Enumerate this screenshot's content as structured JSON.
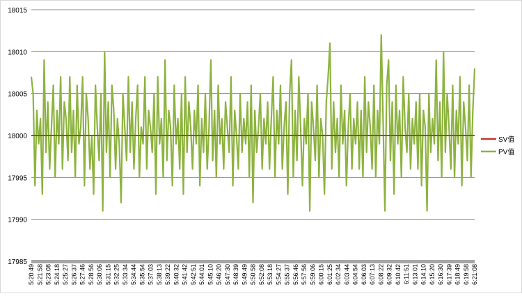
{
  "chart_data": {
    "type": "line",
    "ylim": [
      17985,
      18015
    ],
    "y_ticks": [
      17985,
      17990,
      17995,
      18000,
      18005,
      18010,
      18015
    ],
    "y_tick_labels": [
      "17985",
      "17990",
      "17995",
      "18000",
      "18005",
      "18010",
      "18015"
    ],
    "x_tick_labels": [
      "5:20:49",
      "5:21:58",
      "5:23:08",
      "5:24:18",
      "5:25:27",
      "5:26:37",
      "5:27:46",
      "5:28:56",
      "5:30:06",
      "5:31:15",
      "5:32:25",
      "5:33:34",
      "5:34:44",
      "5:35:54",
      "5:37:03",
      "5:38:13",
      "5:39:22",
      "5:40:32",
      "5:41:42",
      "5:42:51",
      "5:44:01",
      "5:45:10",
      "5:46:20",
      "5:47:30",
      "5:48:39",
      "5:49:49",
      "5:50:58",
      "5:52:08",
      "5:53:18",
      "5:54:27",
      "5:55:37",
      "5:56:46",
      "5:57:56",
      "5:59:06",
      "6:00:15",
      "6:01:25",
      "6:02:34",
      "6:03:44",
      "6:04:54",
      "6:06:03",
      "6:07:13",
      "6:08:22",
      "6:09:32",
      "6:10:42",
      "6:11:51",
      "6:13:01",
      "6:14:10",
      "6:15:20",
      "6:16:30",
      "6:17:39",
      "6:18:49",
      "6:19:58",
      "6:21:08"
    ],
    "grid": true,
    "legend_position": "right",
    "series": [
      {
        "name": "SV值",
        "color": "#c0392b",
        "values": [
          18000,
          18000,
          18000,
          18000,
          18000,
          18000,
          18000,
          18000,
          18000,
          18000,
          18000,
          18000,
          18000,
          18000,
          18000,
          18000,
          18000,
          18000,
          18000,
          18000,
          18000,
          18000,
          18000,
          18000,
          18000,
          18000,
          18000,
          18000,
          18000,
          18000,
          18000,
          18000,
          18000,
          18000,
          18000,
          18000,
          18000,
          18000,
          18000,
          18000,
          18000,
          18000,
          18000,
          18000,
          18000,
          18000,
          18000,
          18000,
          18000,
          18000,
          18000,
          18000,
          18000,
          18000,
          18000,
          18000,
          18000,
          18000,
          18000,
          18000,
          18000,
          18000,
          18000,
          18000,
          18000,
          18000,
          18000,
          18000,
          18000,
          18000,
          18000,
          18000,
          18000,
          18000,
          18000,
          18000,
          18000,
          18000,
          18000,
          18000,
          18000,
          18000,
          18000,
          18000,
          18000,
          18000,
          18000,
          18000,
          18000,
          18000,
          18000,
          18000,
          18000,
          18000,
          18000,
          18000,
          18000,
          18000,
          18000,
          18000,
          18000,
          18000,
          18000,
          18000,
          18000,
          18000,
          18000,
          18000,
          18000,
          18000,
          18000,
          18000,
          18000,
          18000,
          18000,
          18000,
          18000,
          18000,
          18000,
          18000,
          18000,
          18000,
          18000,
          18000,
          18000,
          18000,
          18000,
          18000,
          18000,
          18000,
          18000,
          18000,
          18000,
          18000,
          18000,
          18000,
          18000,
          18000,
          18000,
          18000,
          18000,
          18000,
          18000,
          18000,
          18000,
          18000,
          18000,
          18000,
          18000,
          18000,
          18000,
          18000,
          18000,
          18000,
          18000,
          18000,
          18000,
          18000,
          18000,
          18000,
          18000,
          18000,
          18000,
          18000,
          18000,
          18000,
          18000,
          18000,
          18000,
          18000,
          18000,
          18000,
          18000,
          18000,
          18000,
          18000,
          18000,
          18000,
          18000,
          18000,
          18000,
          18000,
          18000,
          18000,
          18000,
          18000,
          18000,
          18000,
          18000,
          18000,
          18000,
          18000,
          18000,
          18000,
          18000,
          18000,
          18000,
          18000,
          18000,
          18000,
          18000,
          18000,
          18000,
          18000,
          18000,
          18000,
          18000,
          18000,
          18000,
          18000,
          18000,
          18000,
          18000,
          18000,
          18000,
          18000,
          18000,
          18000,
          18000,
          18000,
          18000,
          18000,
          18000,
          18000,
          18000,
          18000,
          18000,
          18000,
          18000,
          18000,
          18000,
          18000,
          18000,
          18000,
          18000,
          18000,
          18000,
          18000,
          18000,
          18000
        ]
      },
      {
        "name": "PV值",
        "color": "#8db33f",
        "values": [
          18007,
          18005,
          17994,
          18003,
          17999,
          18002,
          17993,
          18009,
          17998,
          18004,
          17996,
          18001,
          18006,
          17995,
          18003,
          17999,
          18007,
          17996,
          18004,
          18002,
          17997,
          18007,
          17998,
          18003,
          17995,
          18006,
          17999,
          18001,
          18007,
          17994,
          18005,
          18002,
          17996,
          18000,
          17993,
          18006,
          18001,
          17997,
          18005,
          17991,
          18010,
          17998,
          18004,
          17995,
          18006,
          18003,
          17996,
          18002,
          17999,
          17992,
          18005,
          18001,
          17997,
          18007,
          17998,
          18004,
          17996,
          18002,
          18006,
          17995,
          18001,
          17999,
          18007,
          17996,
          18003,
          18001,
          17998,
          18005,
          17993,
          18007,
          17999,
          18002,
          17995,
          18009,
          17997,
          18003,
          18001,
          17994,
          18006,
          17999,
          18002,
          17996,
          18005,
          17993,
          18007,
          17998,
          18004,
          18001,
          17996,
          18003,
          17999,
          18006,
          17994,
          18002,
          17998,
          18005,
          17996,
          18001,
          18009,
          17997,
          18003,
          17995,
          18006,
          17999,
          18002,
          17996,
          18004,
          18001,
          17998,
          18007,
          17994,
          18003,
          18000,
          17996,
          18005,
          17998,
          18002,
          17999,
          18004,
          17995,
          18006,
          17992,
          18003,
          17998,
          18001,
          18005,
          17996,
          18002,
          17999,
          18004,
          17996,
          18002,
          18007,
          17995,
          18003,
          17999,
          18006,
          17996,
          18001,
          18004,
          17993,
          18005,
          18009,
          17995,
          18003,
          17997,
          18007,
          18001,
          17994,
          18002,
          17999,
          18005,
          17991,
          18004,
          18001,
          17997,
          18006,
          17995,
          18002,
          18000,
          17993,
          18004,
          18007,
          18011,
          17996,
          18004,
          17998,
          18002,
          17995,
          18006,
          17999,
          18003,
          17994,
          18001,
          18005,
          17996,
          18002,
          17999,
          18004,
          17996,
          18003,
          17995,
          18007,
          17998,
          18004,
          18001,
          17996,
          18006,
          17995,
          18003,
          17999,
          18012,
          18002,
          17991,
          18006,
          18009,
          17997,
          18004,
          17993,
          18006,
          17999,
          18003,
          17995,
          18007,
          18001,
          17998,
          18005,
          17996,
          18002,
          17999,
          18004,
          17996,
          18005,
          17994,
          18003,
          18001,
          17991,
          18005,
          17998,
          18002,
          17999,
          18009,
          17997,
          18004,
          17995,
          18010,
          17998,
          18005,
          18001,
          17996,
          18006,
          17995,
          18003,
          17999,
          18007,
          17994,
          18004,
          18001,
          17997,
          18006,
          17995,
          18003,
          18008
        ]
      }
    ]
  }
}
